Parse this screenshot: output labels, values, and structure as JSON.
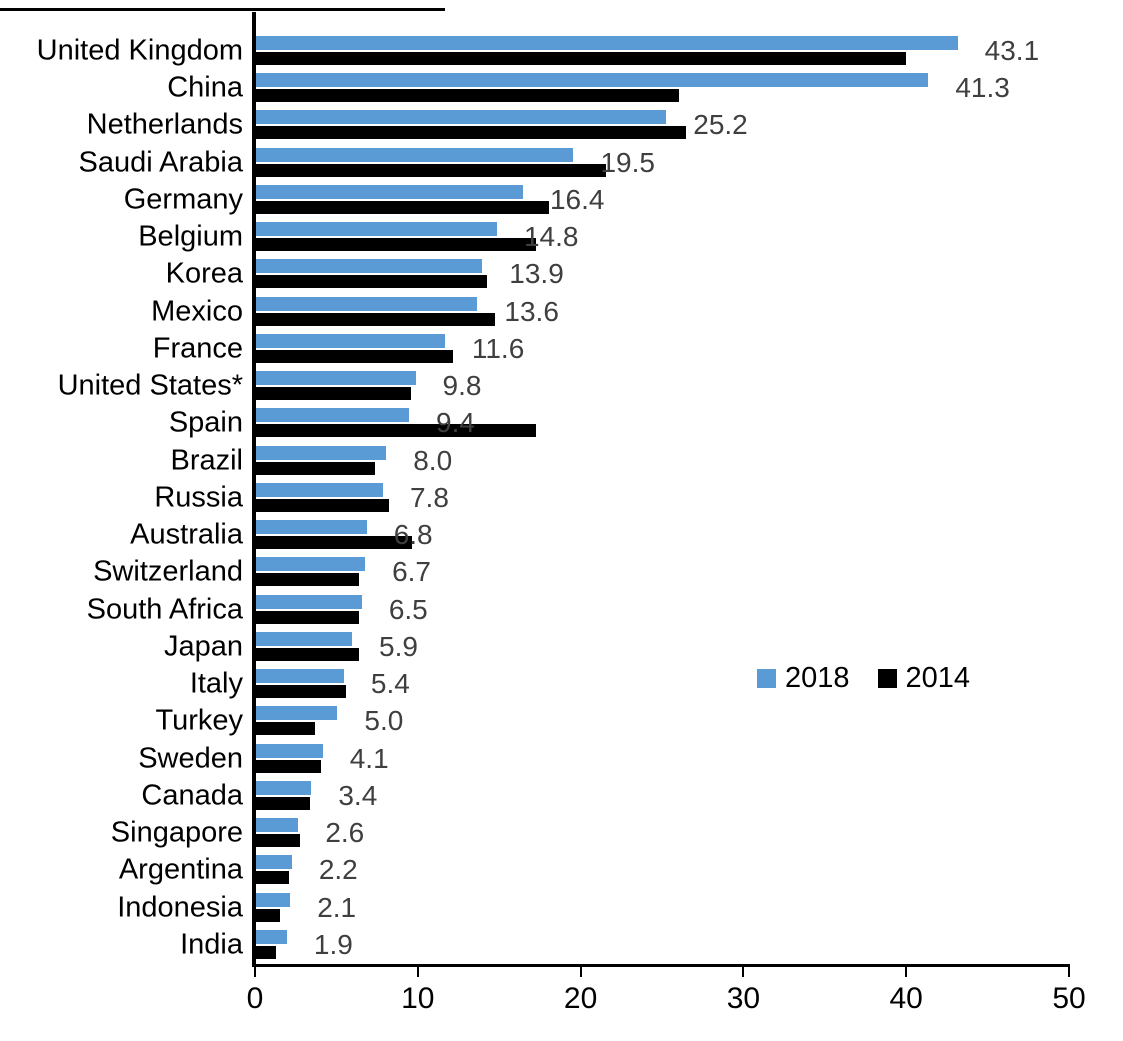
{
  "chart_data": {
    "type": "bar",
    "orientation": "horizontal",
    "title": "",
    "xlabel": "",
    "ylabel": "",
    "xlim": [
      0,
      50
    ],
    "x_ticks": [
      "0",
      "10",
      "20",
      "30",
      "40",
      "50"
    ],
    "grid": false,
    "legend_position": "middle-right",
    "categories": [
      "United Kingdom",
      "China",
      "Netherlands",
      "Saudi Arabia",
      "Germany",
      "Belgium",
      "Korea",
      "Mexico",
      "France",
      "United States*",
      "Spain",
      "Brazil",
      "Russia",
      "Australia",
      "Switzerland",
      "South Africa",
      "Japan",
      "Italy",
      "Turkey",
      "Sweden",
      "Canada",
      "Singapore",
      "Argentina",
      "Indonesia",
      "India"
    ],
    "series": [
      {
        "name": "2018",
        "color": "#5B9BD5",
        "values": [
          43.1,
          41.3,
          25.2,
          19.5,
          16.4,
          14.8,
          13.9,
          13.6,
          11.6,
          9.8,
          9.4,
          8.0,
          7.8,
          6.8,
          6.7,
          6.5,
          5.9,
          5.4,
          5.0,
          4.1,
          3.4,
          2.6,
          2.2,
          2.1,
          1.9
        ]
      },
      {
        "name": "2014",
        "color": "#000000",
        "values": [
          39.9,
          26.0,
          26.4,
          21.5,
          18.0,
          17.2,
          14.2,
          14.7,
          12.1,
          9.5,
          17.2,
          7.3,
          8.2,
          9.6,
          6.3,
          6.3,
          6.3,
          5.5,
          3.6,
          4.0,
          3.3,
          2.7,
          2.0,
          1.5,
          1.2
        ]
      }
    ],
    "value_labels": [
      "43.1",
      "41.3",
      "25.2",
      "19.5",
      "16.4",
      "14.8",
      "13.9",
      "13.6",
      "11.6",
      "9.8",
      "9.4",
      "8.0",
      "7.8",
      "6.8",
      "6.7",
      "6.5",
      "5.9",
      "5.4",
      "5.0",
      "4.1",
      "3.4",
      "2.6",
      "2.2",
      "2.1",
      "1.9"
    ],
    "value_label_color": "#3F3F3F"
  },
  "legend": {
    "items": [
      {
        "label": "2018",
        "color": "#5B9BD5"
      },
      {
        "label": "2014",
        "color": "#000000"
      }
    ]
  }
}
